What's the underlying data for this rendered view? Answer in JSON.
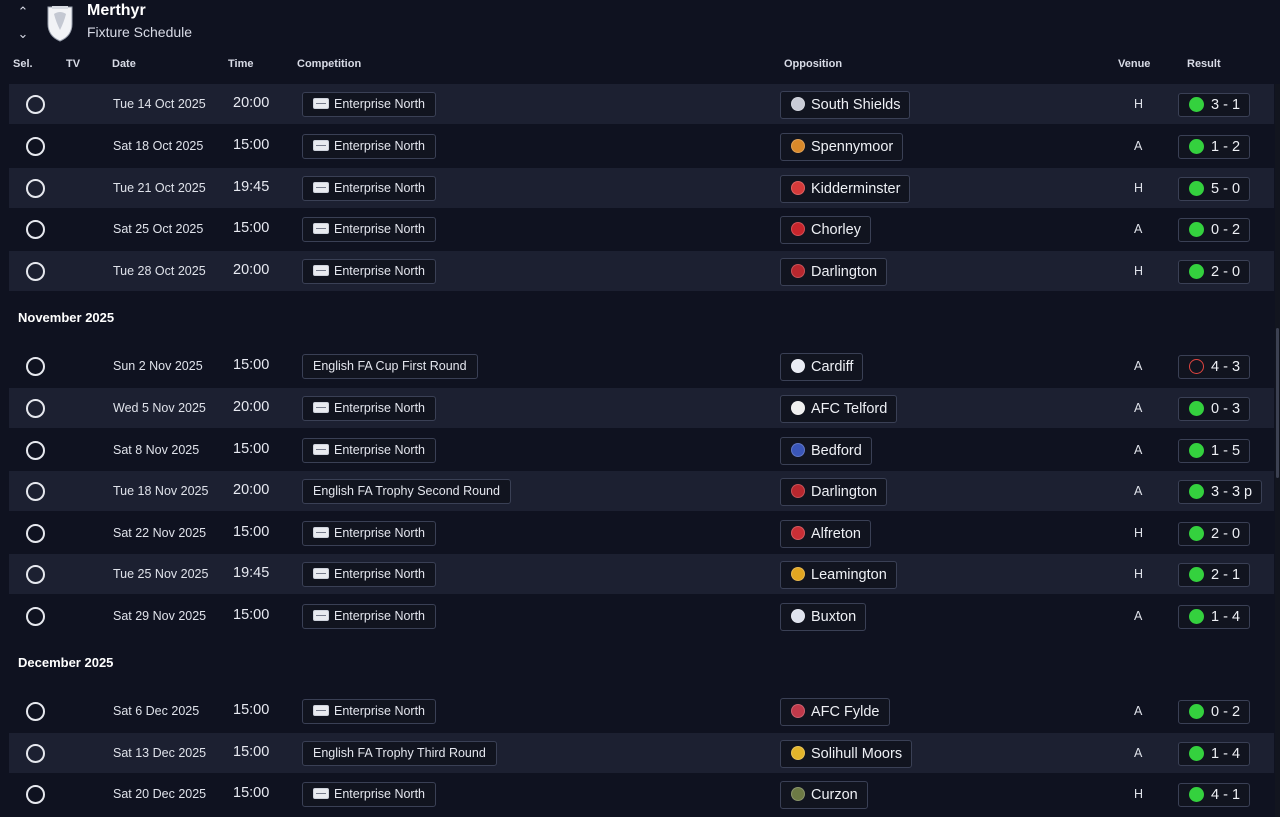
{
  "header": {
    "club_name": "Merthyr",
    "page_title": "Fixture Schedule",
    "up_icon": "chevron-up-icon",
    "down_icon": "chevron-down-icon"
  },
  "columns": {
    "sel": "Sel.",
    "tv": "TV",
    "date": "Date",
    "time": "Time",
    "competition": "Competition",
    "opposition": "Opposition",
    "venue": "Venue",
    "result": "Result"
  },
  "months": [
    "November 2025",
    "December 2025"
  ],
  "fixtures": [
    {
      "date": "Tue 14 Oct 2025",
      "time": "20:00",
      "competition": "Enterprise North",
      "league": true,
      "opposition": "South Shields",
      "badge": "#c9ccd6",
      "venue": "H",
      "result": "3 - 1",
      "outcome": "win"
    },
    {
      "date": "Sat 18 Oct 2025",
      "time": "15:00",
      "competition": "Enterprise North",
      "league": true,
      "opposition": "Spennymoor",
      "badge": "#d9892a",
      "venue": "A",
      "result": "1 - 2",
      "outcome": "win"
    },
    {
      "date": "Tue 21 Oct 2025",
      "time": "19:45",
      "competition": "Enterprise North",
      "league": true,
      "opposition": "Kidderminster",
      "badge": "#d53a3a",
      "venue": "H",
      "result": "5 - 0",
      "outcome": "win"
    },
    {
      "date": "Sat 25 Oct 2025",
      "time": "15:00",
      "competition": "Enterprise North",
      "league": true,
      "opposition": "Chorley",
      "badge": "#c8252c",
      "venue": "A",
      "result": "0 - 2",
      "outcome": "win"
    },
    {
      "date": "Tue 28 Oct 2025",
      "time": "20:00",
      "competition": "Enterprise North",
      "league": true,
      "opposition": "Darlington",
      "badge": "#b8272e",
      "venue": "H",
      "result": "2 - 0",
      "outcome": "win"
    },
    {
      "date": "Sun 2 Nov 2025",
      "time": "15:00",
      "competition": "English FA Cup First Round",
      "league": false,
      "opposition": "Cardiff",
      "badge": "#e9ecf4",
      "venue": "A",
      "result": "4 - 3",
      "outcome": "loss"
    },
    {
      "date": "Wed 5 Nov 2025",
      "time": "20:00",
      "competition": "Enterprise North",
      "league": true,
      "opposition": "AFC Telford",
      "badge": "#f0f0f0",
      "venue": "A",
      "result": "0 - 3",
      "outcome": "win"
    },
    {
      "date": "Sat 8 Nov 2025",
      "time": "15:00",
      "competition": "Enterprise North",
      "league": true,
      "opposition": "Bedford",
      "badge": "#3a56b8",
      "venue": "A",
      "result": "1 - 5",
      "outcome": "win"
    },
    {
      "date": "Tue 18 Nov 2025",
      "time": "20:00",
      "competition": "English FA Trophy Second Round",
      "league": false,
      "opposition": "Darlington",
      "badge": "#b8272e",
      "venue": "A",
      "result": "3 - 3 p",
      "outcome": "win"
    },
    {
      "date": "Sat 22 Nov 2025",
      "time": "15:00",
      "competition": "Enterprise North",
      "league": true,
      "opposition": "Alfreton",
      "badge": "#c92f36",
      "venue": "H",
      "result": "2 - 0",
      "outcome": "win"
    },
    {
      "date": "Tue 25 Nov 2025",
      "time": "19:45",
      "competition": "Enterprise North",
      "league": true,
      "opposition": "Leamington",
      "badge": "#e2a621",
      "venue": "H",
      "result": "2 - 1",
      "outcome": "win"
    },
    {
      "date": "Sat 29 Nov 2025",
      "time": "15:00",
      "competition": "Enterprise North",
      "league": true,
      "opposition": "Buxton",
      "badge": "#dfe3ee",
      "venue": "A",
      "result": "1 - 4",
      "outcome": "win"
    },
    {
      "date": "Sat 6 Dec 2025",
      "time": "15:00",
      "competition": "Enterprise North",
      "league": true,
      "opposition": "AFC Fylde",
      "badge": "#c0394a",
      "venue": "A",
      "result": "0 - 2",
      "outcome": "win"
    },
    {
      "date": "Sat 13 Dec 2025",
      "time": "15:00",
      "competition": "English FA Trophy Third Round",
      "league": false,
      "opposition": "Solihull Moors",
      "badge": "#e3b52b",
      "venue": "A",
      "result": "1 - 4",
      "outcome": "win"
    },
    {
      "date": "Sat 20 Dec 2025",
      "time": "15:00",
      "competition": "Enterprise North",
      "league": true,
      "opposition": "Curzon",
      "badge": "#6d7a45",
      "venue": "H",
      "result": "4 - 1",
      "outcome": "win"
    }
  ]
}
